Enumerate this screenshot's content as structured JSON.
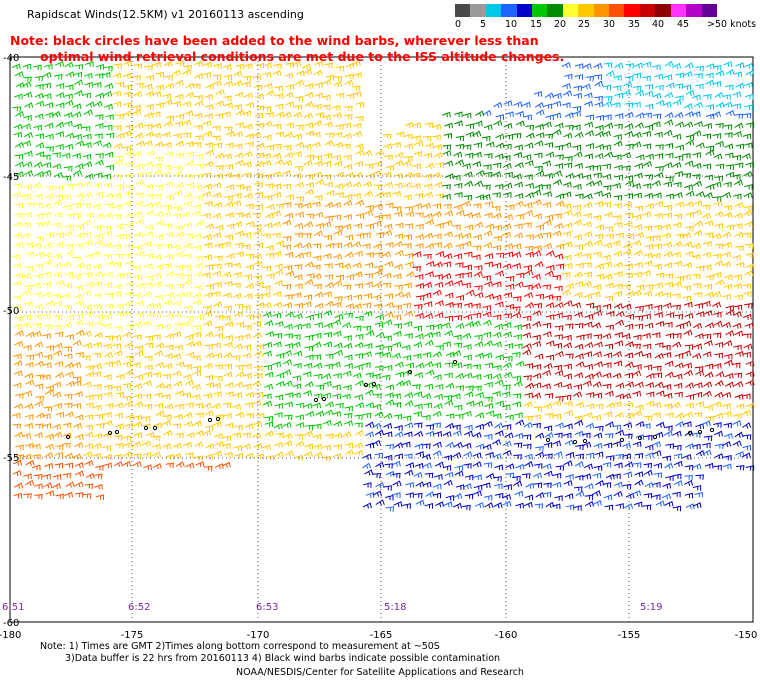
{
  "title": "Rapidscat Winds(12.5KM) v1 20160113 ascending",
  "note_line1": "Note: black circles have been added to the wind barbs, wherever less than",
  "note_line2": "optimal wind retrieval conditions are met due to the ISS altitude changes.",
  "legend": {
    "labels": [
      "0",
      "5",
      "10",
      "15",
      "20",
      "25",
      "30",
      "35",
      "40",
      "45",
      ">50 knots"
    ],
    "colors": [
      "#4a4a4a",
      "#9a9a9a",
      "#00c8e8",
      "#1e64ff",
      "#0000c8",
      "#00c800",
      "#008c00",
      "#ffff32",
      "#ffc800",
      "#ff9600",
      "#ff5000",
      "#ff0000",
      "#c80000",
      "#8c0000",
      "#ff32ff",
      "#b400c8",
      "#640096"
    ]
  },
  "lat_labels": [
    "-40",
    "-45",
    "-50",
    "-55",
    "-60"
  ],
  "lon_labels": [
    "-180",
    "-175",
    "-170",
    "-165",
    "-160",
    "-155",
    "-150"
  ],
  "times": [
    "6:51",
    "6:52",
    "6:53",
    "5:18",
    "5:19"
  ],
  "footnote_line1": "Note: 1) Times are GMT 2)Times along bottom correspond to measurement at ~50S",
  "footnote_line2": "3)Data buffer is 22 hrs from 20160113 4) Black wind barbs indicate possible contamination",
  "credit": "NOAA/NESDIS/Center for Satellite Applications and Research"
}
